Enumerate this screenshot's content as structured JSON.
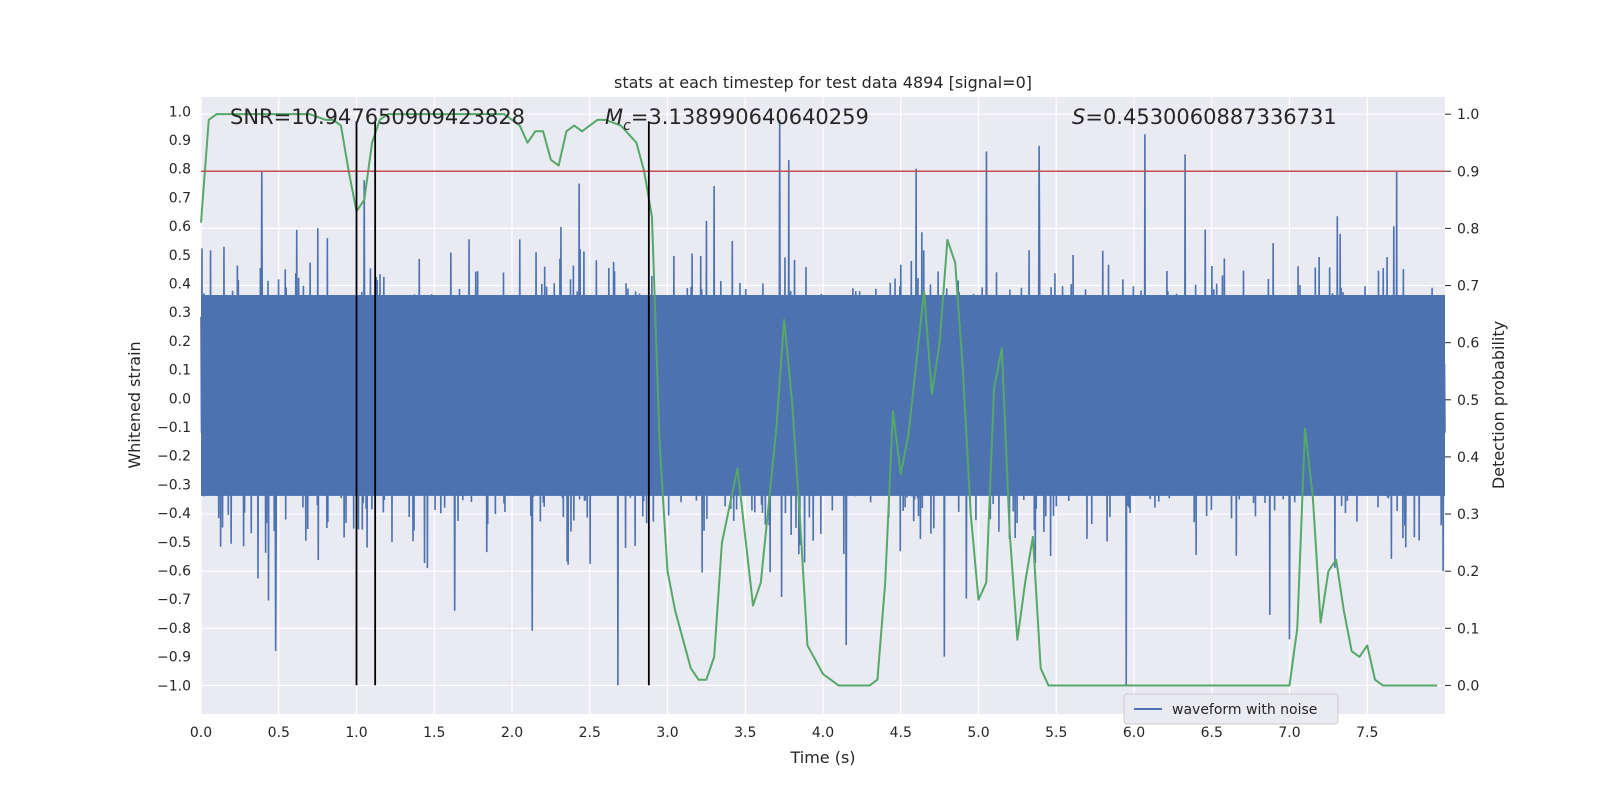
{
  "chart_data": {
    "type": "line",
    "title": "stats at each timestep for test data 4894 [signal=0]",
    "xlabel": "Time (s)",
    "ylabel": "Whitened strain",
    "y2label": "Detection probability",
    "xlim": [
      0.0,
      8.0
    ],
    "ylim": [
      -1.1,
      1.05
    ],
    "y2lim": [
      -0.05,
      1.03
    ],
    "xticks": [
      0.0,
      0.5,
      1.0,
      1.5,
      2.0,
      2.5,
      3.0,
      3.5,
      4.0,
      4.5,
      5.0,
      5.5,
      6.0,
      6.5,
      7.0,
      7.5
    ],
    "xtick_labels": [
      "0.0",
      "0.5",
      "1.0",
      "1.5",
      "2.0",
      "2.5",
      "3.0",
      "3.5",
      "4.0",
      "4.5",
      "5.0",
      "5.5",
      "6.0",
      "6.5",
      "7.0",
      "7.5"
    ],
    "yticks": [
      -1.0,
      -0.9,
      -0.8,
      -0.7,
      -0.6,
      -0.5,
      -0.4,
      -0.3,
      -0.2,
      -0.1,
      0.0,
      0.1,
      0.2,
      0.3,
      0.4,
      0.5,
      0.6,
      0.7,
      0.8,
      0.9,
      1.0
    ],
    "ytick_labels": [
      "−1.0",
      "−0.9",
      "−0.8",
      "−0.7",
      "−0.6",
      "−0.5",
      "−0.4",
      "−0.3",
      "−0.2",
      "−0.1",
      "0.0",
      "0.1",
      "0.2",
      "0.3",
      "0.4",
      "0.5",
      "0.6",
      "0.7",
      "0.8",
      "0.9",
      "1.0"
    ],
    "y2ticks": [
      0.0,
      0.1,
      0.2,
      0.3,
      0.4,
      0.5,
      0.6,
      0.7,
      0.8,
      0.9,
      1.0
    ],
    "y2tick_labels": [
      "0.0",
      "0.1",
      "0.2",
      "0.3",
      "0.4",
      "0.5",
      "0.6",
      "0.7",
      "0.8",
      "0.9",
      "1.0"
    ],
    "grid": true,
    "annotations": {
      "snr": "SNR=10.947650909423828",
      "mc_symbol": "M",
      "mc_sub": "c",
      "mc_value": "=3.138990640640259",
      "s_symbol": "S",
      "s_value": "=0.4530060887336731"
    },
    "threshold_y2": 0.9,
    "vertical_lines_x": [
      1.0,
      1.12,
      2.88
    ],
    "legend": {
      "label": "waveform with noise",
      "position": "lower-right"
    },
    "waveform": {
      "name": "waveform with noise",
      "color": "#4c72b0",
      "envelope": "dense noise, typical amplitude about ±0.45, peaks near ±1.0",
      "peaks": [
        {
          "x": 0.39,
          "y": 0.79
        },
        {
          "x": 0.48,
          "y": -0.88
        },
        {
          "x": 1.05,
          "y": 0.76
        },
        {
          "x": 1.63,
          "y": -0.74
        },
        {
          "x": 2.13,
          "y": -0.81
        },
        {
          "x": 2.68,
          "y": -1.0
        },
        {
          "x": 3.3,
          "y": 0.74
        },
        {
          "x": 3.72,
          "y": 0.97
        },
        {
          "x": 3.78,
          "y": 0.83
        },
        {
          "x": 4.15,
          "y": -0.86
        },
        {
          "x": 4.6,
          "y": 0.8
        },
        {
          "x": 4.78,
          "y": -0.9
        },
        {
          "x": 5.05,
          "y": 0.86
        },
        {
          "x": 5.39,
          "y": 0.88
        },
        {
          "x": 5.95,
          "y": -1.0
        },
        {
          "x": 6.07,
          "y": 0.92
        },
        {
          "x": 6.33,
          "y": 0.85
        },
        {
          "x": 7.0,
          "y": -0.84
        },
        {
          "x": 7.69,
          "y": 0.79
        }
      ]
    },
    "detection_probability": {
      "name": "detection probability",
      "color": "#55a868",
      "x": [
        0.0,
        0.05,
        0.1,
        0.2,
        0.3,
        0.4,
        0.5,
        0.6,
        0.7,
        0.8,
        0.85,
        0.9,
        0.95,
        1.0,
        1.05,
        1.1,
        1.15,
        1.2,
        1.25,
        1.3,
        1.4,
        1.6,
        1.8,
        1.95,
        2.05,
        2.1,
        2.15,
        2.2,
        2.25,
        2.3,
        2.35,
        2.4,
        2.45,
        2.5,
        2.55,
        2.6,
        2.7,
        2.8,
        2.85,
        2.9,
        2.95,
        3.0,
        3.05,
        3.1,
        3.15,
        3.2,
        3.25,
        3.3,
        3.35,
        3.45,
        3.55,
        3.6,
        3.7,
        3.75,
        3.8,
        3.85,
        3.9,
        4.0,
        4.05,
        4.1,
        4.2,
        4.3,
        4.35,
        4.4,
        4.45,
        4.5,
        4.55,
        4.65,
        4.7,
        4.75,
        4.8,
        4.85,
        4.9,
        4.95,
        5.0,
        5.05,
        5.1,
        5.15,
        5.2,
        5.25,
        5.3,
        5.35,
        5.4,
        5.45,
        5.5,
        5.55,
        5.6,
        5.65,
        5.7,
        5.8,
        5.95,
        6.1,
        6.3,
        6.5,
        6.7,
        6.8,
        6.9,
        7.0,
        7.05,
        7.1,
        7.15,
        7.2,
        7.25,
        7.3,
        7.35,
        7.4,
        7.45,
        7.5,
        7.55,
        7.6,
        7.65,
        7.7,
        7.8,
        7.95
      ],
      "values": [
        0.81,
        0.99,
        1.0,
        1.0,
        1.0,
        1.0,
        1.0,
        1.0,
        1.0,
        0.99,
        0.99,
        0.98,
        0.9,
        0.83,
        0.85,
        0.95,
        0.99,
        1.0,
        1.0,
        1.0,
        1.0,
        1.0,
        1.0,
        1.0,
        0.98,
        0.95,
        0.97,
        0.97,
        0.92,
        0.91,
        0.97,
        0.98,
        0.97,
        0.98,
        0.99,
        0.99,
        0.98,
        0.95,
        0.9,
        0.82,
        0.42,
        0.2,
        0.13,
        0.08,
        0.03,
        0.01,
        0.01,
        0.05,
        0.25,
        0.38,
        0.14,
        0.18,
        0.45,
        0.64,
        0.5,
        0.3,
        0.07,
        0.02,
        0.01,
        0.0,
        0.0,
        0.0,
        0.01,
        0.18,
        0.48,
        0.37,
        0.44,
        0.69,
        0.51,
        0.6,
        0.78,
        0.74,
        0.55,
        0.3,
        0.15,
        0.18,
        0.52,
        0.59,
        0.27,
        0.08,
        0.18,
        0.26,
        0.03,
        0.0,
        0.0,
        0.0,
        0.0,
        0.0,
        0.0,
        0.0,
        0.0,
        0.0,
        0.0,
        0.0,
        0.0,
        0.0,
        0.0,
        0.0,
        0.1,
        0.45,
        0.33,
        0.11,
        0.2,
        0.22,
        0.13,
        0.06,
        0.05,
        0.07,
        0.01,
        0.0,
        0.0,
        0.0,
        0.0,
        0.0
      ]
    },
    "colors": {
      "axes_bg": "#eaeaf2",
      "grid": "#ffffff",
      "threshold": "#c44e52",
      "vlines": "#000000"
    }
  }
}
